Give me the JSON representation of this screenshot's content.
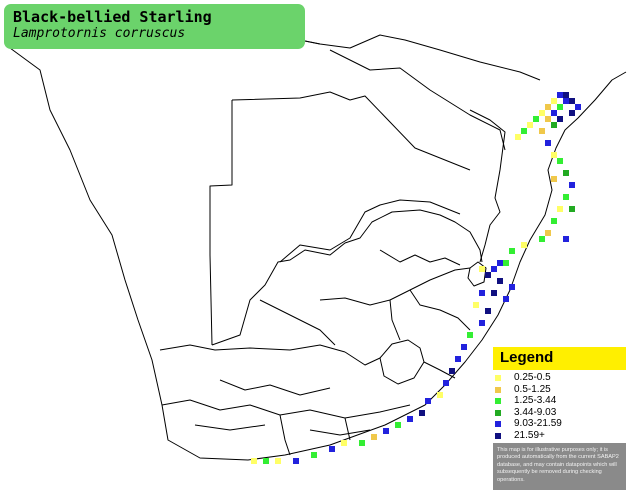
{
  "title": {
    "common_name": "Black-bellied Starling",
    "scientific_name": "Lamprotornis corruscus"
  },
  "legend": {
    "heading": "Legend",
    "items": [
      {
        "label": "0.25-0.5",
        "color": "#ffff66"
      },
      {
        "label": "0.5-1.25",
        "color": "#f0c84a"
      },
      {
        "label": "1.25-3.44",
        "color": "#33ee33"
      },
      {
        "label": "3.44-9.03",
        "color": "#22aa22"
      },
      {
        "label": "9.03-21.59",
        "color": "#2222dd"
      },
      {
        "label": "21.59+",
        "color": "#101080"
      }
    ],
    "disclaimer": "This map is for illustrative purposes only; it is produced automatically from the current SABAP2 database, and may contain datapoints which will subsequently be removed during checking operations."
  },
  "colors": {
    "title_background": "#6bd36b",
    "legend_header": "#ffef00",
    "land": "#ffffff",
    "borders": "#000000"
  }
}
